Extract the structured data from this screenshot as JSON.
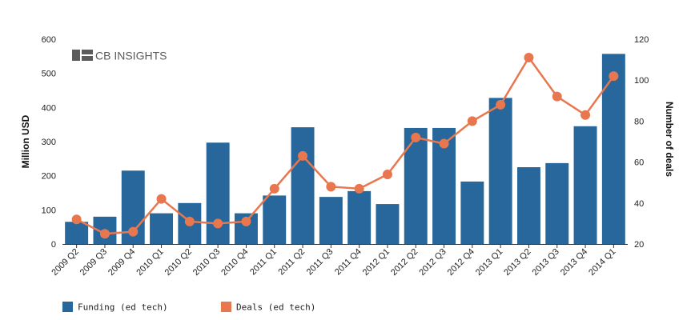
{
  "chart_data": {
    "type": "bar",
    "categories": [
      "2009 Q2",
      "2009 Q3",
      "2009 Q4",
      "2010 Q1",
      "2010 Q2",
      "2010 Q3",
      "2010 Q4",
      "2011 Q1",
      "2011 Q2",
      "2011 Q3",
      "2011 Q4",
      "2012 Q1",
      "2012 Q2",
      "2012 Q3",
      "2012 Q4",
      "2013 Q1",
      "2013 Q2",
      "2013 Q3",
      "2013 Q4",
      "2014 Q1"
    ],
    "series": [
      {
        "name": "Funding (ed tech)",
        "type": "bar",
        "axis": "left",
        "color": "#27679b",
        "values": [
          65,
          80,
          215,
          90,
          120,
          297,
          90,
          142,
          342,
          138,
          155,
          117,
          340,
          340,
          183,
          428,
          225,
          237,
          345,
          557
        ]
      },
      {
        "name": "Deals (ed tech)",
        "type": "line",
        "axis": "right",
        "color": "#e8774f",
        "values": [
          32,
          25,
          26,
          42,
          31,
          30,
          31,
          47,
          63,
          48,
          47,
          54,
          72,
          69,
          80,
          88,
          111,
          92,
          83,
          102
        ]
      }
    ],
    "ylabel": "Million USD",
    "ylabel_right": "Number of deals",
    "ylim": [
      0,
      600
    ],
    "ylim_right": [
      20,
      120
    ],
    "yticks": [
      "0",
      "100",
      "200",
      "300",
      "400",
      "500",
      "600"
    ],
    "yticks_right": [
      "20",
      "40",
      "60",
      "80",
      "100",
      "120"
    ],
    "grid": false,
    "legend_position": "bottom-left",
    "watermark": "CB INSIGHTS"
  }
}
